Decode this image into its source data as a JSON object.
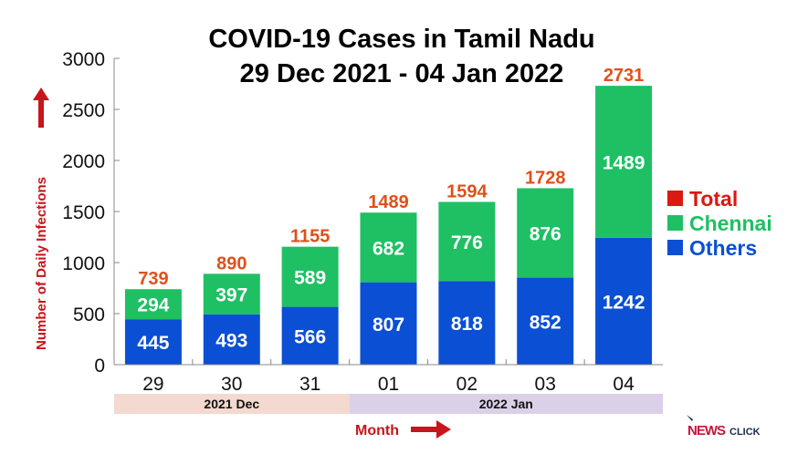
{
  "chart_data": {
    "type": "bar",
    "stacked": true,
    "title": "COVID-19 Cases in Tamil Nadu",
    "subtitle": "29 Dec 2021 - 04 Jan 2022",
    "ylabel": "Number of Daily Infections",
    "xlabel": "Month",
    "ylim": [
      0,
      3000
    ],
    "yticks": [
      0,
      500,
      1000,
      1500,
      2000,
      2500,
      3000
    ],
    "grid": false,
    "categories": [
      "29",
      "30",
      "31",
      "01",
      "02",
      "03",
      "04"
    ],
    "month_groups": [
      {
        "label": "2021 Dec",
        "span": 3,
        "color": "#f3d9cf"
      },
      {
        "label": "2022 Jan",
        "span": 4,
        "color": "#dcd0e8"
      }
    ],
    "series": [
      {
        "name": "Others",
        "color": "#0b4fd4",
        "values": [
          445,
          493,
          566,
          807,
          818,
          852,
          1242
        ]
      },
      {
        "name": "Chennai",
        "color": "#1ec063",
        "values": [
          294,
          397,
          589,
          682,
          776,
          876,
          1489
        ]
      }
    ],
    "totals": {
      "name": "Total",
      "color": "#d81a12",
      "label_color": "#e0501a",
      "values": [
        739,
        890,
        1155,
        1489,
        1594,
        1728,
        2731
      ]
    },
    "legend_position": "right",
    "axis_label_color": "#c8141b"
  },
  "logo": {
    "text_news": "NEWS",
    "text_click": "CLICK"
  }
}
